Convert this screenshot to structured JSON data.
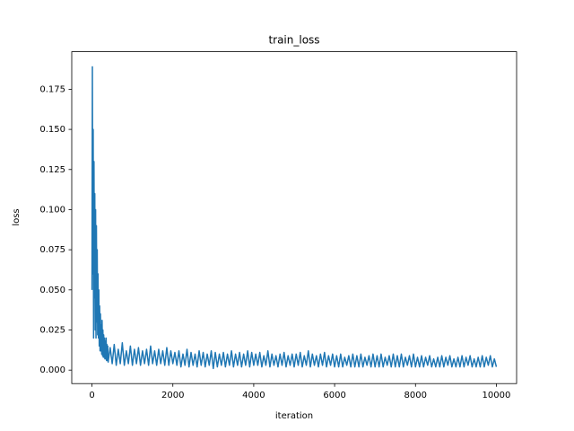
{
  "chart_data": {
    "type": "line",
    "title": "train_loss",
    "xlabel": "iteration",
    "ylabel": "loss",
    "color": "#1f77b4",
    "xlim": [
      -500,
      10500
    ],
    "ylim": [
      -0.0084,
      0.1984
    ],
    "xticks": [
      0,
      2000,
      4000,
      6000,
      8000,
      10000
    ],
    "yticks": [
      {
        "value": 0,
        "label": "0.000"
      },
      {
        "value": 0.025,
        "label": "0.025"
      },
      {
        "value": 0.05,
        "label": "0.050"
      },
      {
        "value": 0.075,
        "label": "0.075"
      },
      {
        "value": 0.1,
        "label": "0.100"
      },
      {
        "value": 0.125,
        "label": "0.125"
      },
      {
        "value": 0.15,
        "label": "0.150"
      },
      {
        "value": 0.175,
        "label": "0.175"
      }
    ],
    "x": [
      0,
      10,
      20,
      30,
      40,
      50,
      60,
      70,
      80,
      90,
      100,
      110,
      120,
      130,
      140,
      150,
      160,
      170,
      180,
      190,
      200,
      210,
      220,
      230,
      240,
      250,
      260,
      270,
      280,
      290,
      300,
      310,
      320,
      330,
      340,
      350,
      360,
      370,
      380,
      390,
      400,
      450,
      500,
      550,
      600,
      650,
      700,
      750,
      800,
      850,
      900,
      950,
      1000,
      1050,
      1100,
      1150,
      1200,
      1250,
      1300,
      1350,
      1400,
      1450,
      1500,
      1550,
      1600,
      1650,
      1700,
      1750,
      1800,
      1850,
      1900,
      1950,
      2000,
      2050,
      2100,
      2150,
      2200,
      2250,
      2300,
      2350,
      2400,
      2450,
      2500,
      2550,
      2600,
      2650,
      2700,
      2750,
      2800,
      2850,
      2900,
      2950,
      3000,
      3050,
      3100,
      3150,
      3200,
      3250,
      3300,
      3350,
      3400,
      3450,
      3500,
      3550,
      3600,
      3650,
      3700,
      3750,
      3800,
      3850,
      3900,
      3950,
      4000,
      4050,
      4100,
      4150,
      4200,
      4250,
      4300,
      4350,
      4400,
      4450,
      4500,
      4550,
      4600,
      4650,
      4700,
      4750,
      4800,
      4850,
      4900,
      4950,
      5000,
      5050,
      5100,
      5150,
      5200,
      5250,
      5300,
      5350,
      5400,
      5450,
      5500,
      5550,
      5600,
      5650,
      5700,
      5750,
      5800,
      5850,
      5900,
      5950,
      6000,
      6050,
      6100,
      6150,
      6200,
      6250,
      6300,
      6350,
      6400,
      6450,
      6500,
      6550,
      6600,
      6650,
      6700,
      6750,
      6800,
      6850,
      6900,
      6950,
      7000,
      7050,
      7100,
      7150,
      7200,
      7250,
      7300,
      7350,
      7400,
      7450,
      7500,
      7550,
      7600,
      7650,
      7700,
      7750,
      7800,
      7850,
      7900,
      7950,
      8000,
      8050,
      8100,
      8150,
      8200,
      8250,
      8300,
      8350,
      8400,
      8450,
      8500,
      8550,
      8600,
      8650,
      8700,
      8750,
      8800,
      8850,
      8900,
      8950,
      9000,
      9050,
      9100,
      9150,
      9200,
      9250,
      9300,
      9350,
      9400,
      9450,
      9500,
      9550,
      9600,
      9650,
      9700,
      9750,
      9800,
      9850,
      9900,
      9950,
      10000
    ],
    "values": [
      0.05,
      0.189,
      0.06,
      0.15,
      0.02,
      0.13,
      0.045,
      0.11,
      0.025,
      0.1,
      0.02,
      0.09,
      0.03,
      0.075,
      0.022,
      0.06,
      0.02,
      0.05,
      0.015,
      0.04,
      0.012,
      0.035,
      0.012,
      0.028,
      0.01,
      0.031,
      0.009,
      0.025,
      0.008,
      0.022,
      0.008,
      0.02,
      0.007,
      0.018,
      0.007,
      0.02,
      0.006,
      0.016,
      0.006,
      0.015,
      0.005,
      0.014,
      0.004,
      0.016,
      0.003,
      0.013,
      0.004,
      0.017,
      0.003,
      0.012,
      0.004,
      0.015,
      0.003,
      0.013,
      0.004,
      0.014,
      0.003,
      0.012,
      0.004,
      0.013,
      0.003,
      0.015,
      0.004,
      0.012,
      0.003,
      0.013,
      0.004,
      0.012,
      0.003,
      0.014,
      0.003,
      0.012,
      0.004,
      0.011,
      0.003,
      0.012,
      0.002,
      0.01,
      0.003,
      0.013,
      0.002,
      0.011,
      0.003,
      0.01,
      0.002,
      0.012,
      0.003,
      0.011,
      0.002,
      0.01,
      0.003,
      0.012,
      0.001,
      0.011,
      0.002,
      0.01,
      0.003,
      0.011,
      0.002,
      0.01,
      0.003,
      0.012,
      0.002,
      0.01,
      0.003,
      0.011,
      0.002,
      0.01,
      0.003,
      0.012,
      0.002,
      0.011,
      0.003,
      0.01,
      0.003,
      0.011,
      0.002,
      0.009,
      0.003,
      0.012,
      0.002,
      0.01,
      0.003,
      0.009,
      0.002,
      0.01,
      0.003,
      0.011,
      0.002,
      0.009,
      0.003,
      0.01,
      0.002,
      0.01,
      0.003,
      0.011,
      0.002,
      0.009,
      0.003,
      0.012,
      0.002,
      0.01,
      0.003,
      0.009,
      0.002,
      0.01,
      0.003,
      0.011,
      0.002,
      0.009,
      0.003,
      0.01,
      0.002,
      0.009,
      0.002,
      0.01,
      0.002,
      0.008,
      0.003,
      0.009,
      0.002,
      0.01,
      0.002,
      0.009,
      0.002,
      0.01,
      0.002,
      0.008,
      0.003,
      0.009,
      0.002,
      0.01,
      0.002,
      0.009,
      0.002,
      0.01,
      0.002,
      0.008,
      0.003,
      0.009,
      0.002,
      0.01,
      0.002,
      0.009,
      0.002,
      0.01,
      0.002,
      0.008,
      0.003,
      0.009,
      0.002,
      0.01,
      0.002,
      0.008,
      0.002,
      0.009,
      0.002,
      0.008,
      0.003,
      0.009,
      0.002,
      0.007,
      0.002,
      0.008,
      0.002,
      0.009,
      0.002,
      0.008,
      0.003,
      0.009,
      0.002,
      0.007,
      0.002,
      0.008,
      0.002,
      0.009,
      0.002,
      0.008,
      0.003,
      0.009,
      0.002,
      0.007,
      0.002,
      0.008,
      0.002,
      0.009,
      0.002,
      0.008,
      0.003,
      0.009,
      0.002,
      0.007,
      0.002
    ]
  }
}
